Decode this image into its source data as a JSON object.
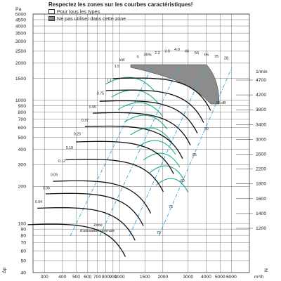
{
  "legend": {
    "title": "Respectez les zones sur les courbes caractéristiques!",
    "items": [
      {
        "label": "Pour tous les types",
        "color": "#ffffff"
      },
      {
        "label": "Ne pas utiliser dans cette zone",
        "color": "#8c8c8c"
      }
    ]
  },
  "chart_data": {
    "type": "line",
    "y_axis": {
      "label": "Pa",
      "label_bottom": "Δp",
      "scale": "log",
      "range": [
        40,
        5000
      ],
      "tick_labels": [
        "5000",
        "4500",
        "4000",
        "3500",
        "3000",
        "2500",
        "2000",
        "1500",
        "1000",
        "900",
        "800",
        "700",
        "600",
        "500",
        "400",
        "300",
        "200",
        "100",
        "90",
        "80",
        "70",
        "60",
        "50",
        "40"
      ]
    },
    "x_axis": {
      "unit": "m³/h",
      "scale": "log",
      "range": [
        250,
        8000
      ],
      "tick_labels": [
        "300",
        "400",
        "500",
        "600",
        "700",
        "800",
        "900",
        "1000",
        "1500",
        "2000",
        "3000",
        "4000",
        "5000",
        "6000"
      ]
    },
    "speed_axis": {
      "label": "1/min",
      "label_bottom": "N",
      "tick_labels": [
        "4700",
        "4200",
        "3800",
        "3400",
        "3000",
        "2600",
        "2200",
        "1800",
        "1600",
        "1400",
        "1200"
      ]
    },
    "power_labels": [
      "kW",
      "1.5",
      "1.1",
      "0.75",
      "0.55",
      "0.37",
      "0.25",
      "0.18",
      "0.12",
      "0.09",
      "0.06",
      "0.04"
    ],
    "efficiency_top_labels": [
      "η",
      "36%",
      "2.2",
      "3.0",
      "4.0",
      "46",
      "56",
      "65",
      "75",
      "28"
    ],
    "efficiency_inner_labels": [
      "95 dB",
      "90",
      "85",
      "80",
      "75",
      "70"
    ],
    "speed_curve_values": [
      4700,
      4200,
      3800,
      3400,
      3000,
      2600,
      2200,
      1800,
      1600,
      1400,
      1200
    ],
    "zone_label": [
      "Zone",
      "d'utilisation normale"
    ],
    "restricted_zone": "Ne pas utiliser dans cette zone",
    "colors": {
      "curves": "#111111",
      "efficiency": "#1fa88f",
      "system": "#3aa3d9",
      "grid": "#444444",
      "restricted": "#8c8c8c"
    }
  }
}
